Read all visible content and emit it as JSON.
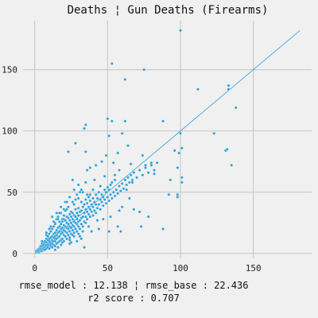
{
  "chart_data": {
    "type": "scatter",
    "title": "Deaths ¦ Gun Deaths (Firearms)",
    "xlabel": "",
    "ylabel": "",
    "xlim": [
      -8,
      190
    ],
    "ylim": [
      -4,
      190
    ],
    "xticks": [
      0,
      50,
      100,
      150
    ],
    "yticks": [
      0,
      50,
      100,
      150
    ],
    "grid": true,
    "reference_line": {
      "x": [
        0,
        182
      ],
      "y": [
        0,
        182
      ]
    },
    "footer_lines": [
      "rmse_model : 12.138 ¦ rmse_base : 22.436",
      "r2 score : 0.707"
    ],
    "point_color": "#2e9fd9",
    "line_color": "#2e9fd9",
    "points": [
      [
        1,
        1
      ],
      [
        1,
        2
      ],
      [
        2,
        1
      ],
      [
        2,
        3
      ],
      [
        2,
        2
      ],
      [
        3,
        1
      ],
      [
        3,
        2
      ],
      [
        3,
        4
      ],
      [
        3,
        3
      ],
      [
        4,
        2
      ],
      [
        4,
        3
      ],
      [
        4,
        5
      ],
      [
        4,
        4
      ],
      [
        4,
        6
      ],
      [
        5,
        2
      ],
      [
        5,
        4
      ],
      [
        5,
        6
      ],
      [
        5,
        8
      ],
      [
        5,
        3
      ],
      [
        6,
        3
      ],
      [
        6,
        5
      ],
      [
        6,
        7
      ],
      [
        6,
        9
      ],
      [
        6,
        4
      ],
      [
        7,
        3
      ],
      [
        7,
        5
      ],
      [
        7,
        8
      ],
      [
        7,
        10
      ],
      [
        7,
        6
      ],
      [
        8,
        4
      ],
      [
        8,
        6
      ],
      [
        8,
        9
      ],
      [
        8,
        12
      ],
      [
        8,
        7
      ],
      [
        8,
        15
      ],
      [
        9,
        5
      ],
      [
        9,
        8
      ],
      [
        9,
        11
      ],
      [
        9,
        14
      ],
      [
        9,
        7
      ],
      [
        10,
        4
      ],
      [
        10,
        7
      ],
      [
        10,
        9
      ],
      [
        10,
        12
      ],
      [
        10,
        16
      ],
      [
        10,
        10
      ],
      [
        11,
        6
      ],
      [
        11,
        9
      ],
      [
        11,
        13
      ],
      [
        11,
        18
      ],
      [
        11,
        8
      ],
      [
        12,
        5
      ],
      [
        12,
        8
      ],
      [
        12,
        11
      ],
      [
        12,
        14
      ],
      [
        12,
        20
      ],
      [
        12,
        10
      ],
      [
        13,
        7
      ],
      [
        13,
        10
      ],
      [
        13,
        13
      ],
      [
        13,
        16
      ],
      [
        13,
        22
      ],
      [
        14,
        6
      ],
      [
        14,
        10
      ],
      [
        14,
        14
      ],
      [
        14,
        17
      ],
      [
        14,
        25
      ],
      [
        14,
        12
      ],
      [
        15,
        8
      ],
      [
        15,
        12
      ],
      [
        15,
        15
      ],
      [
        15,
        19
      ],
      [
        15,
        28
      ],
      [
        16,
        9
      ],
      [
        16,
        13
      ],
      [
        16,
        17
      ],
      [
        16,
        21
      ],
      [
        16,
        30
      ],
      [
        17,
        10
      ],
      [
        17,
        14
      ],
      [
        17,
        18
      ],
      [
        17,
        22
      ],
      [
        17,
        26
      ],
      [
        18,
        11
      ],
      [
        18,
        16
      ],
      [
        18,
        20
      ],
      [
        18,
        24
      ],
      [
        18,
        33
      ],
      [
        19,
        12
      ],
      [
        19,
        17
      ],
      [
        19,
        21
      ],
      [
        19,
        26
      ],
      [
        20,
        10
      ],
      [
        20,
        15
      ],
      [
        20,
        19
      ],
      [
        20,
        23
      ],
      [
        20,
        28
      ],
      [
        20,
        36
      ],
      [
        21,
        14
      ],
      [
        21,
        18
      ],
      [
        21,
        22
      ],
      [
        21,
        27
      ],
      [
        22,
        12
      ],
      [
        22,
        17
      ],
      [
        22,
        21
      ],
      [
        22,
        25
      ],
      [
        22,
        30
      ],
      [
        23,
        15
      ],
      [
        23,
        20
      ],
      [
        23,
        24
      ],
      [
        23,
        29
      ],
      [
        23,
        38
      ],
      [
        24,
        13
      ],
      [
        24,
        18
      ],
      [
        24,
        22
      ],
      [
        24,
        27
      ],
      [
        24,
        32
      ],
      [
        25,
        16
      ],
      [
        25,
        21
      ],
      [
        25,
        25
      ],
      [
        25,
        30
      ],
      [
        25,
        34
      ],
      [
        26,
        19
      ],
      [
        26,
        23
      ],
      [
        26,
        28
      ],
      [
        26,
        33
      ],
      [
        27,
        17
      ],
      [
        27,
        22
      ],
      [
        27,
        26
      ],
      [
        27,
        31
      ],
      [
        27,
        40
      ],
      [
        28,
        20
      ],
      [
        28,
        25
      ],
      [
        28,
        30
      ],
      [
        28,
        36
      ],
      [
        29,
        18
      ],
      [
        29,
        24
      ],
      [
        29,
        28
      ],
      [
        29,
        33
      ],
      [
        30,
        22
      ],
      [
        30,
        26
      ],
      [
        30,
        31
      ],
      [
        30,
        37
      ],
      [
        30,
        45
      ],
      [
        31,
        20
      ],
      [
        31,
        27
      ],
      [
        31,
        34
      ],
      [
        32,
        24
      ],
      [
        32,
        29
      ],
      [
        32,
        35
      ],
      [
        32,
        42
      ],
      [
        33,
        22
      ],
      [
        33,
        30
      ],
      [
        33,
        38
      ],
      [
        34,
        26
      ],
      [
        34,
        33
      ],
      [
        34,
        40
      ],
      [
        35,
        25
      ],
      [
        35,
        30
      ],
      [
        35,
        36
      ],
      [
        35,
        44
      ],
      [
        36,
        28
      ],
      [
        36,
        34
      ],
      [
        36,
        41
      ],
      [
        37,
        32
      ],
      [
        37,
        38
      ],
      [
        37,
        46
      ],
      [
        38,
        30
      ],
      [
        38,
        36
      ],
      [
        38,
        43
      ],
      [
        39,
        34
      ],
      [
        39,
        40
      ],
      [
        40,
        31
      ],
      [
        40,
        38
      ],
      [
        40,
        45
      ],
      [
        40,
        52
      ],
      [
        41,
        35
      ],
      [
        41,
        42
      ],
      [
        42,
        33
      ],
      [
        42,
        40
      ],
      [
        42,
        48
      ],
      [
        43,
        37
      ],
      [
        43,
        45
      ],
      [
        44,
        40
      ],
      [
        44,
        50
      ],
      [
        45,
        36
      ],
      [
        45,
        44
      ],
      [
        45,
        55
      ],
      [
        46,
        42
      ],
      [
        46,
        48
      ],
      [
        47,
        39
      ],
      [
        47,
        46
      ],
      [
        48,
        44
      ],
      [
        48,
        52
      ],
      [
        49,
        41
      ],
      [
        49,
        50
      ],
      [
        50,
        46
      ],
      [
        50,
        54
      ],
      [
        51,
        43
      ],
      [
        51,
        52
      ],
      [
        52,
        48
      ],
      [
        52,
        56
      ],
      [
        53,
        45
      ],
      [
        53,
        58
      ],
      [
        54,
        50
      ],
      [
        55,
        47
      ],
      [
        55,
        60
      ],
      [
        56,
        52
      ],
      [
        57,
        49
      ],
      [
        58,
        55
      ],
      [
        59,
        51
      ],
      [
        60,
        57
      ],
      [
        61,
        53
      ],
      [
        62,
        60
      ],
      [
        63,
        56
      ],
      [
        64,
        62
      ],
      [
        65,
        58
      ],
      [
        66,
        64
      ],
      [
        67,
        60
      ],
      [
        68,
        66
      ],
      [
        70,
        62
      ],
      [
        72,
        68
      ],
      [
        74,
        64
      ],
      [
        76,
        70
      ],
      [
        78,
        66
      ],
      [
        80,
        72
      ],
      [
        82,
        68
      ],
      [
        84,
        74
      ],
      [
        23,
        83
      ],
      [
        26,
        60
      ],
      [
        28,
        90
      ],
      [
        34,
        102
      ],
      [
        35,
        105
      ],
      [
        35,
        83
      ],
      [
        36,
        68
      ],
      [
        36,
        48
      ],
      [
        38,
        70
      ],
      [
        41,
        60
      ],
      [
        42,
        72
      ],
      [
        46,
        75
      ],
      [
        48,
        63
      ],
      [
        49,
        80
      ],
      [
        50,
        110
      ],
      [
        51,
        96
      ],
      [
        51,
        18
      ],
      [
        53,
        155
      ],
      [
        53,
        108
      ],
      [
        54,
        74
      ],
      [
        55,
        64
      ],
      [
        57,
        82
      ],
      [
        58,
        68
      ],
      [
        58,
        35
      ],
      [
        59,
        18
      ],
      [
        60,
        98
      ],
      [
        60,
        38
      ],
      [
        62,
        108
      ],
      [
        62,
        142
      ],
      [
        63,
        52
      ],
      [
        64,
        88
      ],
      [
        65,
        45
      ],
      [
        66,
        73
      ],
      [
        67,
        58
      ],
      [
        68,
        36
      ],
      [
        72,
        34
      ],
      [
        73,
        22
      ],
      [
        74,
        80
      ],
      [
        75,
        150
      ],
      [
        76,
        72
      ],
      [
        78,
        30
      ],
      [
        80,
        74
      ],
      [
        82,
        65
      ],
      [
        88,
        108
      ],
      [
        88,
        20
      ],
      [
        92,
        48
      ],
      [
        93,
        60
      ],
      [
        96,
        84
      ],
      [
        98,
        46
      ],
      [
        98,
        48
      ],
      [
        98,
        70
      ],
      [
        99,
        82
      ],
      [
        100,
        182
      ],
      [
        100,
        98
      ],
      [
        101,
        62
      ],
      [
        101,
        58
      ],
      [
        101,
        86
      ],
      [
        112,
        134
      ],
      [
        123,
        98
      ],
      [
        131,
        84
      ],
      [
        132,
        85
      ],
      [
        133,
        137
      ],
      [
        133,
        134
      ],
      [
        135,
        72
      ],
      [
        138,
        119
      ],
      [
        5,
        10
      ],
      [
        8,
        17
      ],
      [
        11,
        22
      ],
      [
        14,
        3
      ],
      [
        16,
        5
      ],
      [
        19,
        28
      ],
      [
        21,
        35
      ],
      [
        24,
        8
      ],
      [
        26,
        42
      ],
      [
        29,
        10
      ],
      [
        31,
        14
      ],
      [
        33,
        18
      ],
      [
        34,
        5
      ],
      [
        37,
        22
      ],
      [
        39,
        18
      ],
      [
        43,
        27
      ],
      [
        44,
        20
      ],
      [
        47,
        28
      ],
      [
        52,
        30
      ],
      [
        57,
        22
      ],
      [
        14,
        24
      ],
      [
        16,
        28
      ],
      [
        18,
        7
      ],
      [
        20,
        31
      ],
      [
        22,
        36
      ],
      [
        25,
        9
      ],
      [
        27,
        14
      ],
      [
        29,
        48
      ],
      [
        31,
        50
      ],
      [
        32,
        12
      ],
      [
        12,
        30
      ],
      [
        15,
        33
      ],
      [
        18,
        38
      ],
      [
        21,
        42
      ],
      [
        24,
        46
      ],
      [
        27,
        52
      ],
      [
        30,
        56
      ],
      [
        33,
        50
      ],
      [
        35,
        58
      ],
      [
        38,
        48
      ],
      [
        10,
        20
      ],
      [
        13,
        26
      ],
      [
        17,
        33
      ],
      [
        19,
        9
      ],
      [
        22,
        42
      ],
      [
        24,
        11
      ],
      [
        26,
        15
      ],
      [
        28,
        44
      ],
      [
        30,
        16
      ],
      [
        32,
        52
      ]
    ]
  }
}
